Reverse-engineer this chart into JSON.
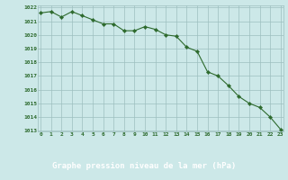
{
  "x": [
    0,
    1,
    2,
    3,
    4,
    5,
    6,
    7,
    8,
    9,
    10,
    11,
    12,
    13,
    14,
    15,
    16,
    17,
    18,
    19,
    20,
    21,
    22,
    23
  ],
  "y": [
    1021.6,
    1021.7,
    1021.3,
    1021.7,
    1021.4,
    1021.1,
    1020.8,
    1020.8,
    1020.3,
    1020.3,
    1020.6,
    1020.4,
    1020.0,
    1019.9,
    1019.1,
    1018.8,
    1017.3,
    1017.0,
    1016.3,
    1015.5,
    1015.0,
    1014.7,
    1014.0,
    1013.1
  ],
  "line_color": "#2d6a2d",
  "marker": "D",
  "marker_size": 2.2,
  "bg_color": "#cce8e8",
  "grid_color": "#9dbfbf",
  "xlabel": "Graphe pression niveau de la mer (hPa)",
  "xlabel_color": "#2d6a2d",
  "tick_color": "#2d6a2d",
  "label_bg_color": "#4a8a4a",
  "ylim_min": 1013,
  "ylim_max": 1022,
  "xlim_min": 0,
  "xlim_max": 23,
  "yticks": [
    1013,
    1014,
    1015,
    1016,
    1017,
    1018,
    1019,
    1020,
    1021,
    1022
  ],
  "xticks": [
    0,
    1,
    2,
    3,
    4,
    5,
    6,
    7,
    8,
    9,
    10,
    11,
    12,
    13,
    14,
    15,
    16,
    17,
    18,
    19,
    20,
    21,
    22,
    23
  ]
}
